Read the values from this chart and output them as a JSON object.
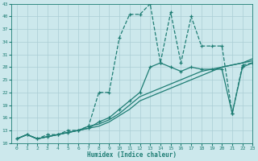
{
  "xlabel": "Humidex (Indice chaleur)",
  "bg_color": "#cce8ec",
  "grid_color": "#aacdd4",
  "line_color": "#1e7d74",
  "xlim": [
    -0.5,
    23
  ],
  "ylim": [
    10,
    43
  ],
  "yticks": [
    10,
    13,
    16,
    19,
    22,
    25,
    28,
    31,
    34,
    37,
    40,
    43
  ],
  "xticks": [
    0,
    1,
    2,
    3,
    4,
    5,
    6,
    7,
    8,
    9,
    10,
    11,
    12,
    13,
    14,
    15,
    16,
    17,
    18,
    19,
    20,
    21,
    22,
    23
  ],
  "lines": [
    {
      "x": [
        0,
        1,
        2,
        3,
        4,
        5,
        6,
        7,
        8,
        9,
        10,
        11,
        12,
        13,
        14,
        15,
        16,
        17,
        18,
        19,
        20,
        21,
        22,
        23
      ],
      "y": [
        11,
        12,
        11,
        11.5,
        12,
        12.5,
        13,
        13.5,
        15,
        16,
        18,
        20,
        22,
        28,
        29,
        28,
        27,
        28,
        27.5,
        27.5,
        27.5,
        17,
        28,
        29
      ],
      "marker": true,
      "dashed": false
    },
    {
      "x": [
        0,
        1,
        2,
        3,
        4,
        5,
        6,
        7,
        8,
        9,
        10,
        11,
        12,
        13,
        14,
        15,
        16,
        17,
        18,
        19,
        20,
        21,
        22,
        23
      ],
      "y": [
        11,
        12,
        11,
        11.5,
        12,
        12.5,
        13,
        13.5,
        14,
        15,
        16.5,
        18,
        20,
        21,
        22,
        23,
        24,
        25,
        26,
        27,
        28,
        28.5,
        29,
        29.5
      ],
      "marker": false,
      "dashed": false
    },
    {
      "x": [
        0,
        1,
        2,
        3,
        4,
        5,
        6,
        7,
        8,
        9,
        10,
        11,
        12,
        13,
        14,
        15,
        16,
        17,
        18,
        19,
        20,
        21,
        22,
        23
      ],
      "y": [
        11,
        12,
        11,
        11.5,
        12,
        12.5,
        13,
        14,
        14.5,
        15.5,
        17,
        19,
        21,
        22,
        23,
        24,
        25,
        26,
        27,
        27.5,
        28,
        28.5,
        29,
        30
      ],
      "marker": false,
      "dashed": false
    },
    {
      "x": [
        0,
        1,
        2,
        3,
        4,
        5,
        6,
        7,
        8,
        9,
        10,
        11,
        12,
        13,
        14,
        15,
        16,
        17,
        18,
        19,
        20,
        21,
        22,
        23
      ],
      "y": [
        11,
        12,
        11,
        12,
        12,
        13,
        13,
        14,
        22,
        22,
        35,
        40.5,
        40.5,
        43,
        29,
        41,
        29,
        40,
        33,
        33,
        33,
        17,
        28.5,
        29
      ],
      "marker": true,
      "dashed": true
    }
  ]
}
